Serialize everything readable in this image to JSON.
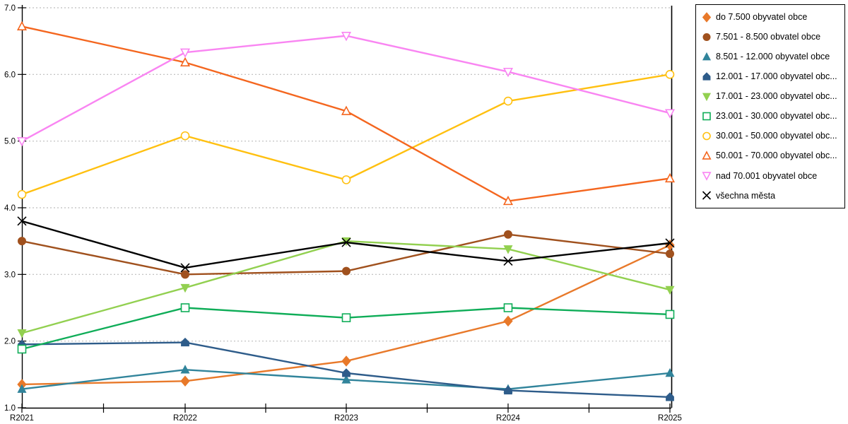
{
  "chart_data": {
    "type": "line",
    "title": "",
    "xlabel": "",
    "ylabel": "",
    "x_categories": [
      "R2021",
      "R2022",
      "R2023",
      "R2024",
      "R2025"
    ],
    "ylim": [
      1.0,
      7.0
    ],
    "y_ticks": [
      1,
      2,
      3,
      4,
      5,
      6,
      7
    ],
    "y_tick_labels": [
      "1.0",
      "2.0",
      "3.0",
      "4.0",
      "5.0",
      "6.0",
      "7.0"
    ],
    "grid": "horizontal dashed, on integer values",
    "legend_position": "right",
    "series": [
      {
        "name": "do 7.500 obyvatel obce",
        "legend_label": "do 7.500 obyvatel obce",
        "color": "#E8792A",
        "marker": "diamond",
        "marker_style": "filled",
        "values": [
          1.35,
          1.4,
          1.7,
          2.3,
          3.44
        ]
      },
      {
        "name": "7.501 - 8.500 obvatel obce",
        "legend_label": "7.501 - 8.500 obvatel obce",
        "color": "#A0511E",
        "marker": "circle",
        "marker_style": "filled",
        "values": [
          3.5,
          3.0,
          3.05,
          3.6,
          3.31
        ]
      },
      {
        "name": "8.501 - 12.000 obyvatel obce",
        "legend_label": "8.501 - 12.000 obyvatel obce",
        "color": "#31849B",
        "marker": "triangle-up",
        "marker_style": "filled",
        "values": [
          1.28,
          1.57,
          1.42,
          1.28,
          1.52
        ]
      },
      {
        "name": "12.001 - 17.000 obyvatel obc...",
        "legend_label": "12.001 - 17.000 obyvatel obc...",
        "color": "#2E5C8A",
        "marker": "pentagon",
        "marker_style": "filled",
        "values": [
          1.95,
          1.98,
          1.52,
          1.26,
          1.16
        ]
      },
      {
        "name": "17.001 - 23.000 obyvatel obc...",
        "legend_label": "17.001 - 23.000 obyvatel obc...",
        "color": "#92D050",
        "marker": "triangle-down",
        "marker_style": "filled",
        "values": [
          2.12,
          2.8,
          3.5,
          3.38,
          2.77
        ]
      },
      {
        "name": "23.001 - 30.000 obyvatel obc...",
        "legend_label": "23.001 - 30.000 obyvatel obc...",
        "color": "#0FAD58",
        "marker": "square",
        "marker_style": "open",
        "values": [
          1.88,
          2.5,
          2.35,
          2.5,
          2.4
        ]
      },
      {
        "name": "30.001 - 50.000 obyvatel obc...",
        "legend_label": "30.001 - 50.000 obyvatel obc...",
        "color": "#FFC010",
        "marker": "circle",
        "marker_style": "open",
        "values": [
          4.2,
          5.08,
          4.42,
          5.6,
          6.0
        ]
      },
      {
        "name": "50.001 - 70.000 obyvatel obc...",
        "legend_label": "50.001 - 70.000 obyvatel obc...",
        "color": "#F4661F",
        "marker": "triangle-up",
        "marker_style": "open",
        "values": [
          6.72,
          6.18,
          5.45,
          4.1,
          4.44
        ]
      },
      {
        "name": "nad 70.001 obyvatel obce",
        "legend_label": "nad 70.001 obyvatel obce",
        "color": "#F985F2",
        "marker": "triangle-down",
        "marker_style": "open",
        "values": [
          5.0,
          6.33,
          6.58,
          6.04,
          5.42
        ]
      },
      {
        "name": "všechna města",
        "legend_label": "všechna města",
        "color": "#000000",
        "marker": "x",
        "marker_style": "stroke",
        "values": [
          3.8,
          3.1,
          3.48,
          3.2,
          3.47
        ]
      }
    ]
  },
  "colors": {
    "background": "#FFFFFF",
    "grid": "#BDBDBD",
    "axis": "#000000",
    "tick_text": "#000000",
    "legend_border": "#000000",
    "legend_text": "#000000"
  }
}
